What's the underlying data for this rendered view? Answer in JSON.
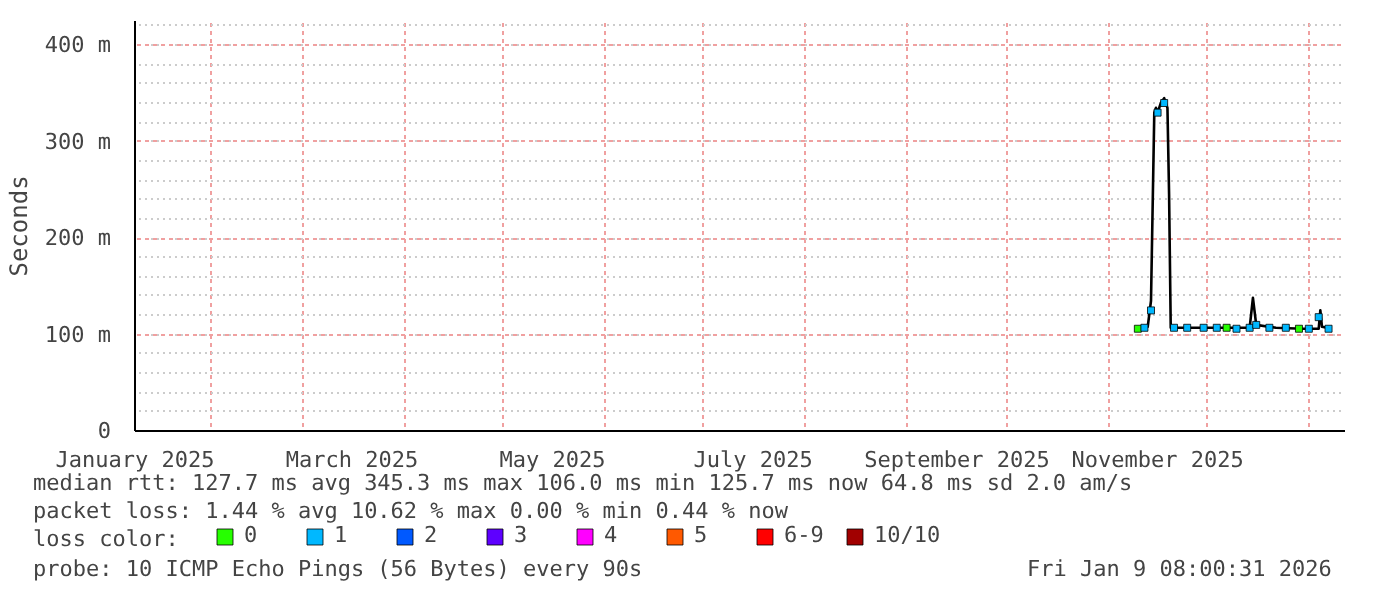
{
  "chart_data": {
    "type": "line",
    "ylabel": "Seconds",
    "xlim": [
      "2025-01-09",
      "2026-01-12"
    ],
    "ylim": [
      0,
      425
    ],
    "xticks": [
      {
        "value": "2025-01-09",
        "label": "January 2025"
      },
      {
        "value": "2025-03-16",
        "label": "March 2025"
      },
      {
        "value": "2025-05-16",
        "label": "May 2025"
      },
      {
        "value": "2025-07-16",
        "label": "July 2025"
      },
      {
        "value": "2025-09-16",
        "label": "September 2025"
      },
      {
        "value": "2025-11-16",
        "label": "November 2025"
      }
    ],
    "yticks": [
      0,
      {
        "value": 100,
        "label": "100 m"
      },
      {
        "value": 200,
        "label": "200 m"
      },
      {
        "value": 300,
        "label": "300 m"
      },
      {
        "value": 400,
        "label": "400 m"
      }
    ],
    "grid": true,
    "legend": "bottom",
    "marker": "square",
    "series": [
      {
        "color": "#000000",
        "marker": "none",
        "x": [
          "2025-11-10",
          "2025-11-13",
          "2025-11-14",
          "2025-11-15",
          "2025-11-15T12:00",
          "2025-11-16",
          "2025-11-17",
          "2025-11-18",
          "2025-11-19",
          "2025-11-19T12:00",
          "2025-11-20",
          "2025-11-25",
          "2025-12-05",
          "2025-12-14",
          "2025-12-15",
          "2025-12-16",
          "2025-12-22",
          "2025-12-30",
          "2026-01-04",
          "2026-01-04T12:00",
          "2026-01-05",
          "2026-01-08"
        ],
        "values": [
          106,
          108,
          135,
          330,
          335,
          330,
          340,
          345,
          335,
          245,
          107,
          107,
          107,
          107,
          138,
          110,
          107,
          106,
          106,
          125,
          108,
          106
        ]
      },
      {
        "type": "scatter",
        "name": "0",
        "color": "#26ff00",
        "x": [
          "2025-11-10",
          "2025-12-07",
          "2025-12-29"
        ],
        "values": [
          106,
          107,
          106
        ]
      },
      {
        "type": "scatter",
        "name": "1",
        "color": "#00b8ff",
        "x": [
          "2025-11-12",
          "2025-11-14",
          "2025-11-16",
          "2025-11-18",
          "2025-11-21",
          "2025-11-25",
          "2025-11-30",
          "2025-12-04",
          "2025-12-10",
          "2025-12-14",
          "2025-12-16",
          "2025-12-20",
          "2025-12-25",
          "2026-01-01",
          "2026-01-04",
          "2026-01-07"
        ],
        "values": [
          107,
          125,
          330,
          340,
          107,
          107,
          107,
          107,
          106,
          107,
          110,
          107,
          107,
          106,
          118,
          106
        ]
      },
      {
        "type": "scatter",
        "name": "2",
        "color": "#0059ff"
      },
      {
        "type": "scatter",
        "name": "3",
        "color": "#5e00ff"
      },
      {
        "type": "scatter",
        "name": "4",
        "color": "#ff00ff"
      },
      {
        "type": "scatter",
        "name": "5",
        "color": "#ff5900"
      },
      {
        "type": "scatter",
        "name": "6-9",
        "color": "#ff0000"
      },
      {
        "type": "scatter",
        "name": "10/10",
        "color": "#a10000"
      }
    ],
    "annotations": [
      "median rtt:  127.7 ms avg  345.3 ms max  106.0 ms min  125.7 ms now  64.8 ms sd  2.0   am/s",
      "packet loss: 1.44 % avg  10.62 % max  0.00 % min  0.44 % now",
      "loss color:",
      "probe:       10 ICMP Echo Pings (56 Bytes) every 90s",
      "Fri Jan  9 08:00:31 2026"
    ]
  }
}
